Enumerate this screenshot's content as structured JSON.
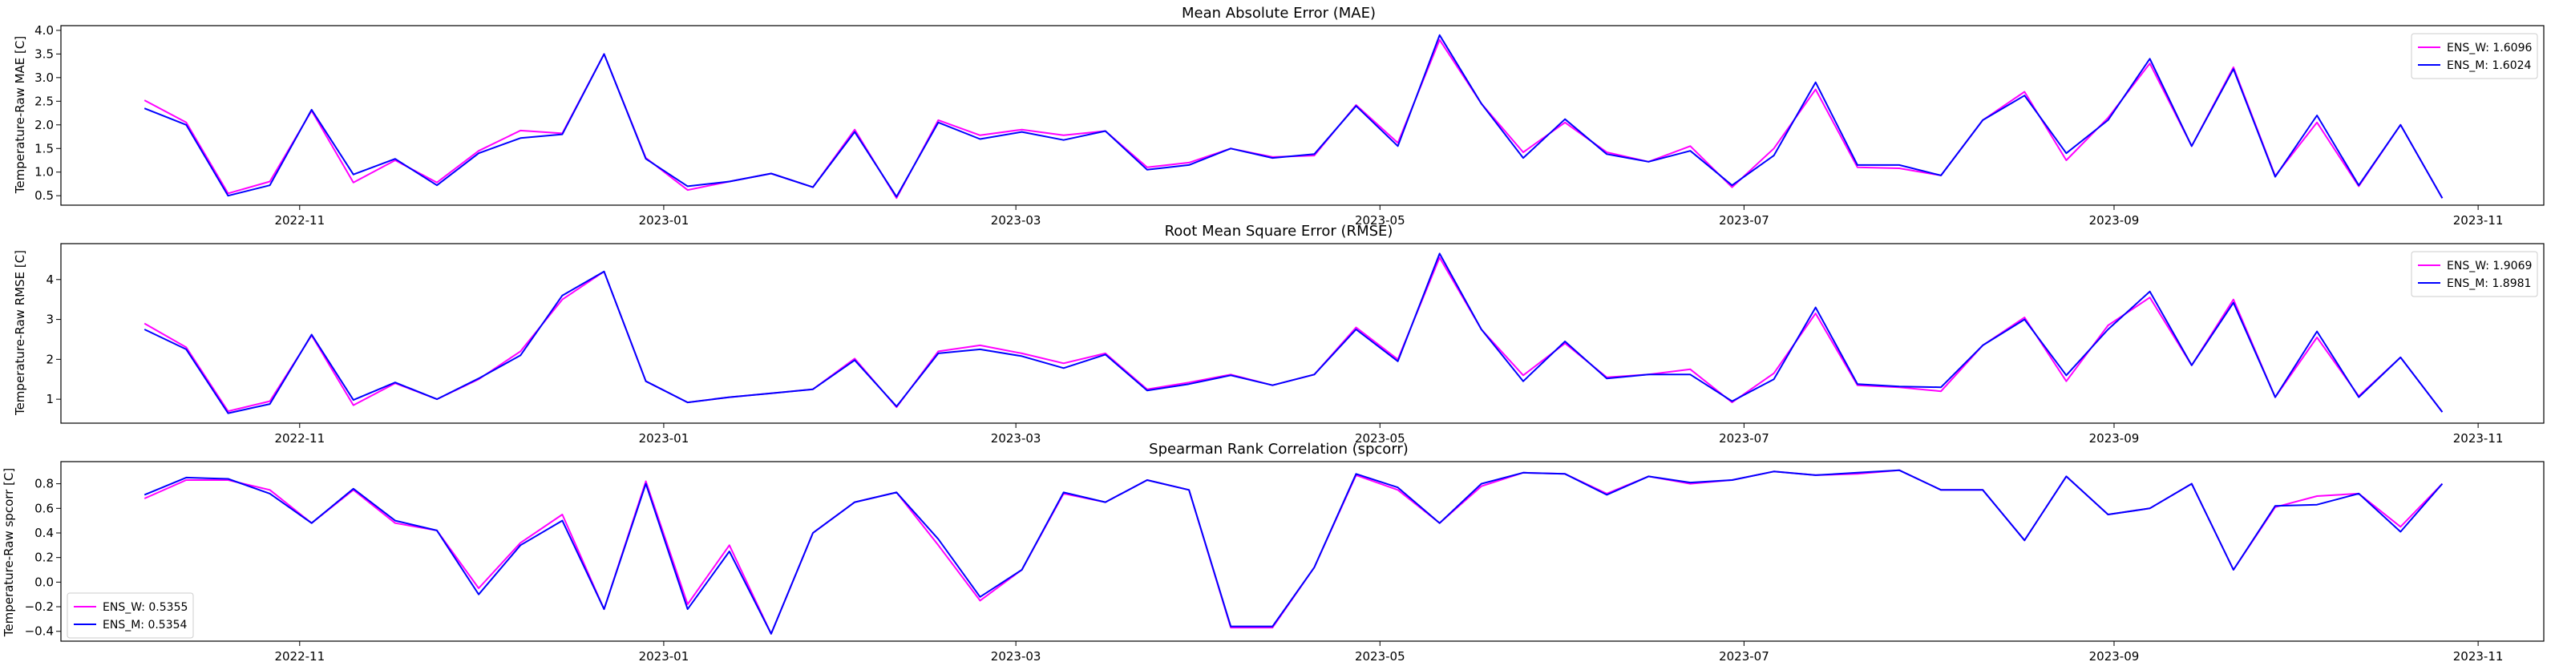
{
  "chart_data": [
    {
      "type": "line",
      "title": "Mean Absolute Error (MAE)",
      "ylabel": "Temperature-Raw MAE [C]",
      "ylim": [
        0.3,
        4.1
      ],
      "yticks": [
        0.5,
        1.0,
        1.5,
        2.0,
        2.5,
        3.0,
        3.5,
        4.0
      ],
      "ytick_labels": [
        "0.5",
        "1.0",
        "1.5",
        "2.0",
        "2.5",
        "3.0",
        "3.5",
        "4.0"
      ],
      "legend_position": "upper-right",
      "series": [
        {
          "name": "ENS_W: 1.6096",
          "color": "#ff00ff",
          "values": [
            2.52,
            2.05,
            0.55,
            0.8,
            2.3,
            0.78,
            1.25,
            0.78,
            1.45,
            1.88,
            1.82,
            3.5,
            1.3,
            0.62,
            0.8,
            0.97,
            0.68,
            1.9,
            0.45,
            2.1,
            1.78,
            1.9,
            1.78,
            1.87,
            1.1,
            1.2,
            1.5,
            1.32,
            1.35,
            2.42,
            1.62,
            3.8,
            2.45,
            1.42,
            2.05,
            1.42,
            1.22,
            1.55,
            0.68,
            1.5,
            2.75,
            1.1,
            1.08,
            0.93,
            2.1,
            2.7,
            1.25,
            2.15,
            3.3,
            1.55,
            3.22,
            0.92,
            2.05,
            0.7,
            2.0,
            0.45
          ]
        },
        {
          "name": "ENS_M: 1.6024",
          "color": "#0000ff",
          "values": [
            2.35,
            2.0,
            0.5,
            0.72,
            2.32,
            0.95,
            1.28,
            0.72,
            1.4,
            1.72,
            1.8,
            3.5,
            1.28,
            0.7,
            0.8,
            0.97,
            0.68,
            1.85,
            0.48,
            2.05,
            1.7,
            1.85,
            1.68,
            1.87,
            1.05,
            1.15,
            1.5,
            1.3,
            1.38,
            2.4,
            1.55,
            3.9,
            2.45,
            1.3,
            2.12,
            1.38,
            1.22,
            1.45,
            0.72,
            1.35,
            2.9,
            1.15,
            1.15,
            0.93,
            2.1,
            2.62,
            1.4,
            2.1,
            3.4,
            1.55,
            3.18,
            0.9,
            2.2,
            0.72,
            2.0,
            0.45
          ]
        }
      ]
    },
    {
      "type": "line",
      "title": "Root Mean Square Error (RMSE)",
      "ylabel": "Temperature-Raw RMSE [C]",
      "ylim": [
        0.4,
        4.9
      ],
      "yticks": [
        1,
        2,
        3,
        4
      ],
      "ytick_labels": [
        "1",
        "2",
        "3",
        "4"
      ],
      "legend_position": "upper-right",
      "series": [
        {
          "name": "ENS_W: 1.9069",
          "color": "#ff00ff",
          "values": [
            2.9,
            2.3,
            0.7,
            0.95,
            2.6,
            0.85,
            1.4,
            1.0,
            1.5,
            2.2,
            3.5,
            4.2,
            1.45,
            0.92,
            1.05,
            1.15,
            1.25,
            2.02,
            0.8,
            2.2,
            2.35,
            2.15,
            1.9,
            2.15,
            1.25,
            1.42,
            1.62,
            1.35,
            1.62,
            2.8,
            2.0,
            4.55,
            2.75,
            1.6,
            2.4,
            1.55,
            1.62,
            1.75,
            0.92,
            1.65,
            3.15,
            1.35,
            1.3,
            1.2,
            2.35,
            3.05,
            1.45,
            2.85,
            3.55,
            1.85,
            3.5,
            1.05,
            2.55,
            1.08,
            2.05,
            0.68
          ]
        },
        {
          "name": "ENS_M: 1.8981",
          "color": "#0000ff",
          "values": [
            2.75,
            2.25,
            0.65,
            0.88,
            2.62,
            0.98,
            1.42,
            1.0,
            1.52,
            2.1,
            3.6,
            4.2,
            1.45,
            0.92,
            1.05,
            1.15,
            1.25,
            1.98,
            0.82,
            2.15,
            2.25,
            2.08,
            1.78,
            2.12,
            1.22,
            1.38,
            1.6,
            1.35,
            1.62,
            2.75,
            1.95,
            4.65,
            2.75,
            1.45,
            2.45,
            1.52,
            1.62,
            1.62,
            0.95,
            1.5,
            3.3,
            1.38,
            1.32,
            1.3,
            2.35,
            3.0,
            1.6,
            2.75,
            3.7,
            1.85,
            3.42,
            1.05,
            2.7,
            1.05,
            2.05,
            0.68
          ]
        }
      ]
    },
    {
      "type": "line",
      "title": "Spearman Rank Correlation (spcorr)",
      "ylabel": "Temperature-Raw spcorr [C]",
      "ylim": [
        -0.48,
        0.98
      ],
      "yticks": [
        -0.4,
        -0.2,
        0.0,
        0.2,
        0.4,
        0.6,
        0.8
      ],
      "ytick_labels": [
        "−0.4",
        "−0.2",
        "0.0",
        "0.2",
        "0.4",
        "0.6",
        "0.8"
      ],
      "legend_position": "lower-left",
      "series": [
        {
          "name": "ENS_W: 0.5355",
          "color": "#ff00ff",
          "values": [
            0.68,
            0.83,
            0.83,
            0.75,
            0.48,
            0.75,
            0.48,
            0.42,
            -0.05,
            0.32,
            0.55,
            -0.22,
            0.82,
            -0.18,
            0.3,
            -0.42,
            0.4,
            0.65,
            0.73,
            0.3,
            -0.15,
            0.1,
            0.72,
            0.65,
            0.83,
            0.75,
            -0.37,
            -0.37,
            0.12,
            0.87,
            0.75,
            0.48,
            0.78,
            0.89,
            0.88,
            0.72,
            0.86,
            0.8,
            0.83,
            0.9,
            0.87,
            0.88,
            0.91,
            0.75,
            0.75,
            0.34,
            0.86,
            0.55,
            0.6,
            0.8,
            0.1,
            0.61,
            0.7,
            0.72,
            0.45,
            0.8
          ]
        },
        {
          "name": "ENS_M: 0.5354",
          "color": "#0000ff",
          "values": [
            0.71,
            0.85,
            0.84,
            0.72,
            0.48,
            0.76,
            0.5,
            0.42,
            -0.1,
            0.3,
            0.5,
            -0.22,
            0.8,
            -0.22,
            0.25,
            -0.42,
            0.4,
            0.65,
            0.73,
            0.35,
            -0.12,
            0.1,
            0.73,
            0.65,
            0.83,
            0.75,
            -0.36,
            -0.36,
            0.12,
            0.88,
            0.77,
            0.48,
            0.8,
            0.89,
            0.88,
            0.71,
            0.86,
            0.81,
            0.83,
            0.9,
            0.87,
            0.89,
            0.91,
            0.75,
            0.75,
            0.34,
            0.86,
            0.55,
            0.6,
            0.8,
            0.1,
            0.62,
            0.63,
            0.72,
            0.41,
            0.8
          ]
        }
      ]
    }
  ],
  "x_axis": {
    "type": "date",
    "start_date": "2022-10-06",
    "step_days": 7,
    "count": 56,
    "range": [
      "2022-09-22",
      "2023-11-12"
    ],
    "ticks": [
      {
        "date": "2022-11-01",
        "label": "2022-11"
      },
      {
        "date": "2023-01-01",
        "label": "2023-01"
      },
      {
        "date": "2023-03-01",
        "label": "2023-03"
      },
      {
        "date": "2023-05-01",
        "label": "2023-05"
      },
      {
        "date": "2023-07-01",
        "label": "2023-07"
      },
      {
        "date": "2023-09-01",
        "label": "2023-09"
      },
      {
        "date": "2023-11-01",
        "label": "2023-11"
      }
    ]
  }
}
